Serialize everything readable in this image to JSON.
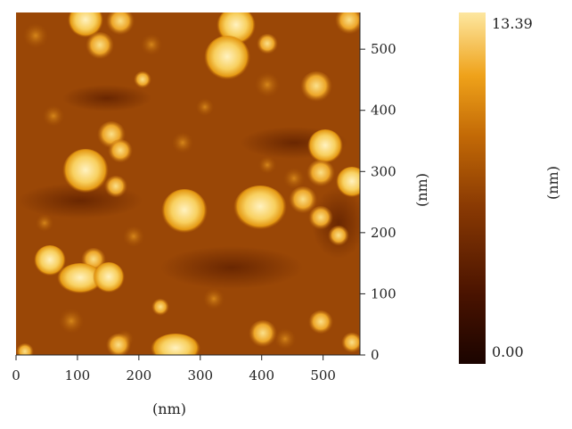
{
  "scan": {
    "x_axis": {
      "label": "(nm)",
      "ticks": [
        0,
        100,
        200,
        300,
        400,
        500
      ],
      "range": [
        0,
        560
      ]
    },
    "y_axis": {
      "label": "(nm)",
      "ticks": [
        0,
        100,
        200,
        300,
        400,
        500
      ],
      "range": [
        0,
        560
      ]
    },
    "colorbar": {
      "label": "(nm)",
      "max_label": "13.39",
      "min_label": "0.00",
      "colors": [
        "#1b0400",
        "#4a1300",
        "#8a3a03",
        "#c36a06",
        "#efa21a",
        "#fde7a0"
      ]
    }
  }
}
